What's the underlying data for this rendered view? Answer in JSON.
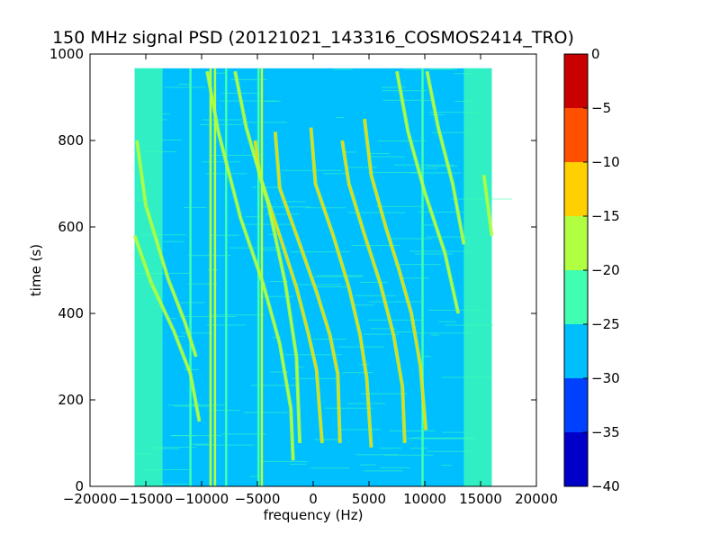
{
  "chart_data": {
    "type": "heatmap",
    "title": "150 MHz signal PSD (20121021_143316_COSMOS2414_TRO)",
    "xlabel": "frequency (Hz)",
    "ylabel": "time (s)",
    "xlim": [
      -20000,
      20000
    ],
    "ylim": [
      0,
      1000
    ],
    "x_ticks": [
      -20000,
      -15000,
      -10000,
      -5000,
      0,
      5000,
      10000,
      15000,
      20000
    ],
    "y_ticks": [
      0,
      200,
      400,
      600,
      800,
      1000
    ],
    "data_extent": {
      "x": [
        -16000,
        16000
      ],
      "y": [
        0,
        967
      ]
    },
    "colorbar": {
      "range": [
        -40,
        0
      ],
      "ticks": [
        0,
        -5,
        -10,
        -15,
        -20,
        -25,
        -30,
        -35,
        -40
      ],
      "levels": [
        {
          "from": -40,
          "to": -35,
          "color": "#0000c8"
        },
        {
          "from": -35,
          "to": -30,
          "color": "#0040ff"
        },
        {
          "from": -30,
          "to": -25,
          "color": "#00bfff"
        },
        {
          "from": -25,
          "to": -20,
          "color": "#40ffb0"
        },
        {
          "from": -20,
          "to": -15,
          "color": "#b0ff40"
        },
        {
          "from": -15,
          "to": -10,
          "color": "#ffd000"
        },
        {
          "from": -10,
          "to": -5,
          "color": "#ff5000"
        },
        {
          "from": -5,
          "to": 0,
          "color": "#c80000"
        }
      ]
    },
    "background_level": -27.5,
    "edge_bands": [
      {
        "x": [
          -16000,
          -13500
        ],
        "level": -22.5
      },
      {
        "x": [
          13500,
          16000
        ],
        "level": -22.5
      }
    ],
    "vertical_lines": [
      {
        "x": -11000,
        "level": -22.5
      },
      {
        "x": -9200,
        "level": -17.5
      },
      {
        "x": -8800,
        "level": -17.5
      },
      {
        "x": -7800,
        "level": -22.5
      },
      {
        "x": -4900,
        "level": -22.5
      },
      {
        "x": -4600,
        "level": -17.5
      },
      {
        "x": 9800,
        "level": -22.5
      }
    ],
    "tracks": [
      {
        "level": -17.5,
        "points": [
          [
            -15800,
            800
          ],
          [
            -15000,
            650
          ],
          [
            -13000,
            480
          ],
          [
            -11500,
            380
          ],
          [
            -10500,
            300
          ]
        ]
      },
      {
        "level": -17.5,
        "points": [
          [
            -16000,
            580
          ],
          [
            -14500,
            470
          ],
          [
            -12500,
            360
          ],
          [
            -11000,
            260
          ],
          [
            -10200,
            150
          ]
        ]
      },
      {
        "level": -17.5,
        "points": [
          [
            -9500,
            960
          ],
          [
            -8500,
            820
          ],
          [
            -6500,
            620
          ],
          [
            -4500,
            470
          ],
          [
            -3000,
            330
          ],
          [
            -2000,
            180
          ],
          [
            -1800,
            60
          ]
        ]
      },
      {
        "level": -12.5,
        "points": [
          [
            -5200,
            800
          ],
          [
            -4800,
            720
          ],
          [
            -3000,
            580
          ],
          [
            -1500,
            460
          ],
          [
            -500,
            360
          ],
          [
            300,
            270
          ],
          [
            800,
            100
          ]
        ]
      },
      {
        "level": -12.5,
        "points": [
          [
            -3400,
            820
          ],
          [
            -3000,
            690
          ],
          [
            -1200,
            560
          ],
          [
            300,
            450
          ],
          [
            1500,
            350
          ],
          [
            2200,
            260
          ],
          [
            2400,
            100
          ]
        ]
      },
      {
        "level": -12.5,
        "points": [
          [
            -200,
            830
          ],
          [
            200,
            700
          ],
          [
            1800,
            580
          ],
          [
            3200,
            460
          ],
          [
            4200,
            350
          ],
          [
            4800,
            250
          ],
          [
            5200,
            90
          ]
        ]
      },
      {
        "level": -12.5,
        "points": [
          [
            2600,
            800
          ],
          [
            3200,
            700
          ],
          [
            4500,
            590
          ],
          [
            6000,
            470
          ],
          [
            7200,
            350
          ],
          [
            8000,
            230
          ],
          [
            8200,
            100
          ]
        ]
      },
      {
        "level": -12.5,
        "points": [
          [
            4600,
            850
          ],
          [
            5200,
            720
          ],
          [
            6500,
            600
          ],
          [
            7700,
            500
          ],
          [
            8800,
            400
          ],
          [
            9600,
            280
          ],
          [
            10100,
            130
          ]
        ]
      },
      {
        "level": -17.5,
        "points": [
          [
            -7000,
            960
          ],
          [
            -6000,
            830
          ],
          [
            -4000,
            650
          ],
          [
            -2500,
            470
          ],
          [
            -1500,
            300
          ],
          [
            -1200,
            100
          ]
        ]
      },
      {
        "level": -17.5,
        "points": [
          [
            7500,
            960
          ],
          [
            8500,
            820
          ],
          [
            10000,
            680
          ],
          [
            11800,
            540
          ],
          [
            13000,
            400
          ]
        ]
      },
      {
        "level": -17.5,
        "points": [
          [
            10200,
            960
          ],
          [
            11200,
            830
          ],
          [
            12500,
            700
          ],
          [
            13500,
            560
          ]
        ]
      },
      {
        "level": -17.5,
        "points": [
          [
            15300,
            720
          ],
          [
            16000,
            580
          ]
        ]
      }
    ]
  }
}
